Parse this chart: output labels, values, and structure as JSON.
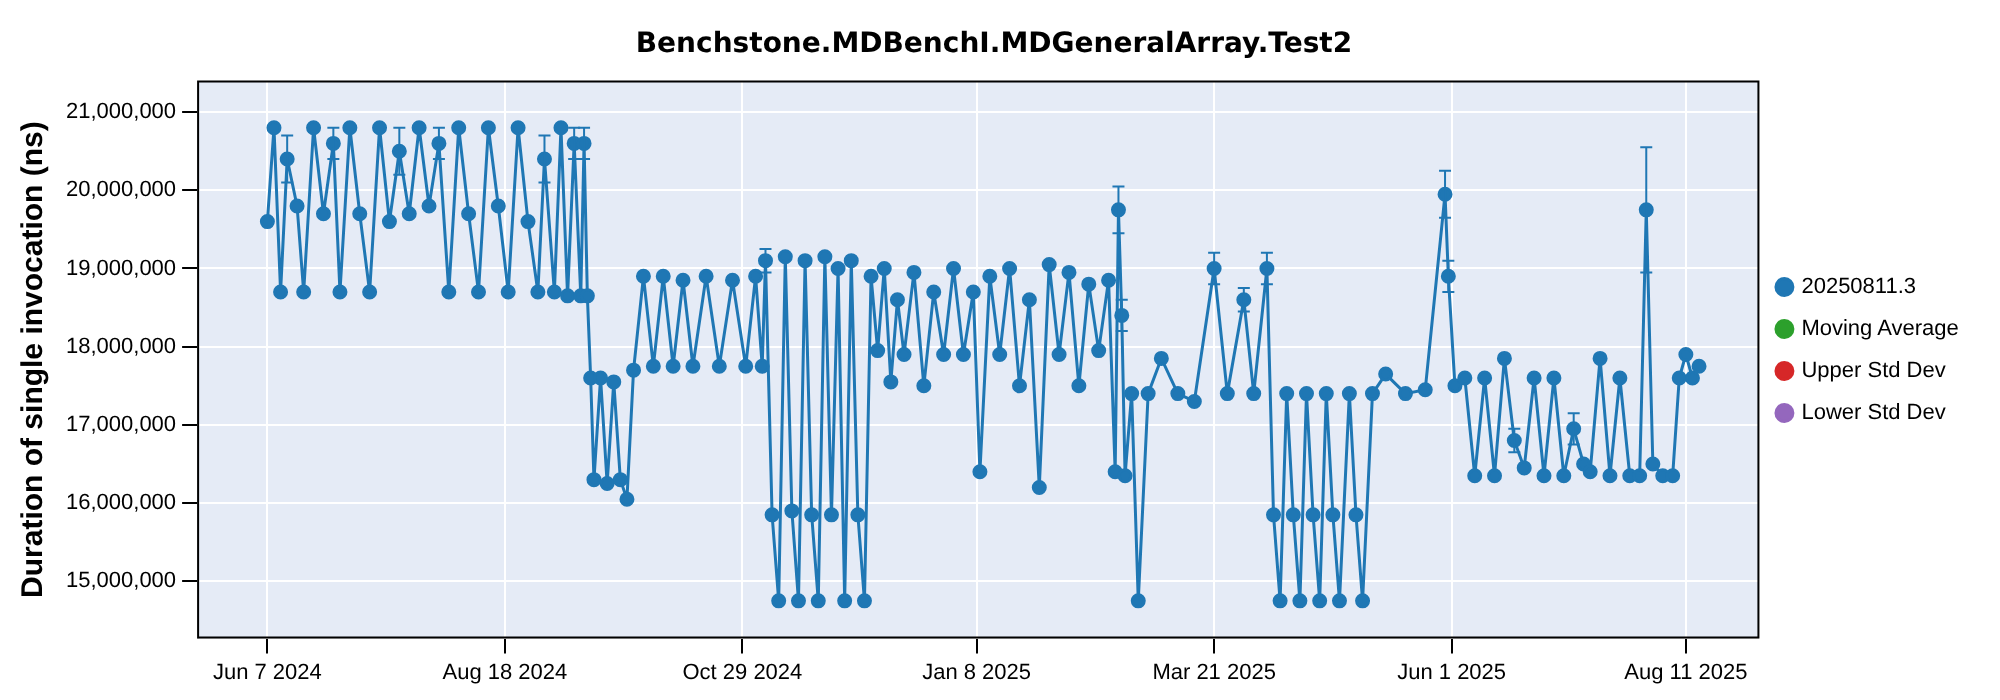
{
  "chart_data": {
    "type": "line",
    "title": "Benchstone.MDBenchI.MDGeneralArray.Test2",
    "ylabel": "Duration of single invocation (ns)",
    "marker": "circle",
    "grid": true,
    "legend": "right",
    "xlim": [
      "2024-05-17",
      "2025-09-02"
    ],
    "xticks": [
      {
        "value": "2024-06-07",
        "label": "Jun 7 2024"
      },
      {
        "value": "2024-08-18",
        "label": "Aug 18 2024"
      },
      {
        "value": "2024-10-29",
        "label": "Oct 29 2024"
      },
      {
        "value": "2025-01-08",
        "label": "Jan 8 2025"
      },
      {
        "value": "2025-03-21",
        "label": "Mar 21 2025"
      },
      {
        "value": "2025-06-01",
        "label": "Jun 1 2025"
      },
      {
        "value": "2025-08-11",
        "label": "Aug 11 2025"
      }
    ],
    "ylim": [
      14280000,
      21390000
    ],
    "yticks": [
      {
        "value": 15000000,
        "label": "15,000,000"
      },
      {
        "value": 16000000,
        "label": "16,000,000"
      },
      {
        "value": 17000000,
        "label": "17,000,000"
      },
      {
        "value": 18000000,
        "label": "18,000,000"
      },
      {
        "value": 19000000,
        "label": "19,000,000"
      },
      {
        "value": 20000000,
        "label": "20,000,000"
      },
      {
        "value": 21000000,
        "label": "21,000,000"
      }
    ],
    "series": [
      {
        "name": "20250811.3",
        "color": "#1f77b4",
        "x": [
          "2024-06-07",
          "2024-06-09",
          "2024-06-11",
          "2024-06-13",
          "2024-06-16",
          "2024-06-18",
          "2024-06-21",
          "2024-06-24",
          "2024-06-27",
          "2024-06-29",
          "2024-07-02",
          "2024-07-05",
          "2024-07-08",
          "2024-07-11",
          "2024-07-14",
          "2024-07-17",
          "2024-07-20",
          "2024-07-23",
          "2024-07-26",
          "2024-07-29",
          "2024-08-01",
          "2024-08-04",
          "2024-08-07",
          "2024-08-10",
          "2024-08-13",
          "2024-08-16",
          "2024-08-19",
          "2024-08-22",
          "2024-08-25",
          "2024-08-28",
          "2024-08-30",
          "2024-09-02",
          "2024-09-04",
          "2024-09-06",
          "2024-09-08",
          "2024-09-10",
          "2024-09-11",
          "2024-09-12",
          "2024-09-13",
          "2024-09-14",
          "2024-09-16",
          "2024-09-18",
          "2024-09-20",
          "2024-09-22",
          "2024-09-24",
          "2024-09-26",
          "2024-09-29",
          "2024-10-02",
          "2024-10-05",
          "2024-10-08",
          "2024-10-11",
          "2024-10-14",
          "2024-10-18",
          "2024-10-22",
          "2024-10-26",
          "2024-10-30",
          "2024-11-02",
          "2024-11-04",
          "2024-11-05",
          "2024-11-07",
          "2024-11-09",
          "2024-11-11",
          "2024-11-13",
          "2024-11-15",
          "2024-11-17",
          "2024-11-19",
          "2024-11-21",
          "2024-11-23",
          "2024-11-25",
          "2024-11-27",
          "2024-11-29",
          "2024-12-01",
          "2024-12-03",
          "2024-12-05",
          "2024-12-07",
          "2024-12-09",
          "2024-12-11",
          "2024-12-13",
          "2024-12-15",
          "2024-12-17",
          "2024-12-20",
          "2024-12-23",
          "2024-12-26",
          "2024-12-29",
          "2025-01-01",
          "2025-01-04",
          "2025-01-07",
          "2025-01-09",
          "2025-01-12",
          "2025-01-15",
          "2025-01-18",
          "2025-01-21",
          "2025-01-24",
          "2025-01-27",
          "2025-01-30",
          "2025-02-02",
          "2025-02-05",
          "2025-02-08",
          "2025-02-11",
          "2025-02-14",
          "2025-02-17",
          "2025-02-19",
          "2025-02-20",
          "2025-02-21",
          "2025-02-22",
          "2025-02-24",
          "2025-02-26",
          "2025-03-01",
          "2025-03-05",
          "2025-03-10",
          "2025-03-15",
          "2025-03-21",
          "2025-03-25",
          "2025-03-30",
          "2025-04-02",
          "2025-04-06",
          "2025-04-08",
          "2025-04-10",
          "2025-04-12",
          "2025-04-14",
          "2025-04-16",
          "2025-04-18",
          "2025-04-20",
          "2025-04-22",
          "2025-04-24",
          "2025-04-26",
          "2025-04-28",
          "2025-05-01",
          "2025-05-03",
          "2025-05-05",
          "2025-05-08",
          "2025-05-12",
          "2025-05-18",
          "2025-05-24",
          "2025-05-30",
          "2025-05-31",
          "2025-06-02",
          "2025-06-05",
          "2025-06-08",
          "2025-06-11",
          "2025-06-14",
          "2025-06-17",
          "2025-06-20",
          "2025-06-23",
          "2025-06-26",
          "2025-06-29",
          "2025-07-02",
          "2025-07-05",
          "2025-07-08",
          "2025-07-11",
          "2025-07-13",
          "2025-07-16",
          "2025-07-19",
          "2025-07-22",
          "2025-07-25",
          "2025-07-28",
          "2025-07-30",
          "2025-08-01",
          "2025-08-04",
          "2025-08-07",
          "2025-08-09",
          "2025-08-11",
          "2025-08-13",
          "2025-08-15"
        ],
        "values": [
          19600000,
          20800000,
          18700000,
          20400000,
          19800000,
          18700000,
          20800000,
          19700000,
          20600000,
          18700000,
          20800000,
          19700000,
          18700000,
          20800000,
          19600000,
          20500000,
          19700000,
          20800000,
          19800000,
          20600000,
          18700000,
          20800000,
          19700000,
          18700000,
          20800000,
          19800000,
          18700000,
          20800000,
          19600000,
          18700000,
          20400000,
          18700000,
          20800000,
          18650000,
          20600000,
          18650000,
          20600000,
          18650000,
          17600000,
          16300000,
          17600000,
          16250000,
          17550000,
          16300000,
          16050000,
          17700000,
          18900000,
          17750000,
          18900000,
          17750000,
          18850000,
          17750000,
          18900000,
          17750000,
          18850000,
          17750000,
          18900000,
          17750000,
          19100000,
          15850000,
          14750000,
          19150000,
          15900000,
          14750000,
          19100000,
          15850000,
          14750000,
          19150000,
          15850000,
          19000000,
          14750000,
          19100000,
          15850000,
          14750000,
          18900000,
          17950000,
          19000000,
          17550000,
          18600000,
          17900000,
          18950000,
          17500000,
          18700000,
          17900000,
          19000000,
          17900000,
          18700000,
          16400000,
          18900000,
          17900000,
          19000000,
          17500000,
          18600000,
          16200000,
          19050000,
          17900000,
          18950000,
          17500000,
          18800000,
          17950000,
          18850000,
          16400000,
          19750000,
          18400000,
          16350000,
          17400000,
          14750000,
          17400000,
          17850000,
          17400000,
          17300000,
          19000000,
          17400000,
          18600000,
          17400000,
          19000000,
          15850000,
          14750000,
          17400000,
          15850000,
          14750000,
          17400000,
          15850000,
          14750000,
          17400000,
          15850000,
          14750000,
          17400000,
          15850000,
          14750000,
          17400000,
          17650000,
          17400000,
          17450000,
          19950000,
          18900000,
          17500000,
          17600000,
          16350000,
          17600000,
          16350000,
          17850000,
          16800000,
          16450000,
          17600000,
          16350000,
          17600000,
          16350000,
          16950000,
          16500000,
          16400000,
          17850000,
          16350000,
          17600000,
          16350000,
          16350000,
          19750000,
          16500000,
          16350000,
          16350000,
          17600000,
          17900000,
          17600000,
          17750000
        ],
        "errors": [
          null,
          null,
          null,
          300000,
          null,
          null,
          null,
          null,
          200000,
          null,
          null,
          null,
          null,
          null,
          null,
          300000,
          null,
          null,
          null,
          200000,
          null,
          null,
          null,
          null,
          null,
          null,
          null,
          null,
          null,
          null,
          300000,
          null,
          null,
          null,
          200000,
          null,
          200000,
          null,
          null,
          null,
          null,
          null,
          null,
          null,
          null,
          null,
          null,
          null,
          null,
          null,
          null,
          null,
          null,
          null,
          null,
          null,
          null,
          null,
          150000,
          null,
          null,
          null,
          null,
          null,
          null,
          null,
          null,
          null,
          null,
          null,
          null,
          null,
          null,
          null,
          null,
          null,
          null,
          null,
          null,
          null,
          null,
          null,
          null,
          null,
          null,
          null,
          null,
          null,
          null,
          null,
          null,
          null,
          null,
          null,
          null,
          null,
          null,
          null,
          null,
          null,
          null,
          null,
          300000,
          200000,
          null,
          null,
          null,
          null,
          null,
          null,
          null,
          200000,
          null,
          150000,
          null,
          200000,
          null,
          null,
          null,
          null,
          null,
          null,
          null,
          null,
          null,
          null,
          null,
          null,
          null,
          null,
          null,
          null,
          null,
          null,
          300000,
          200000,
          null,
          null,
          null,
          null,
          null,
          null,
          150000,
          null,
          null,
          null,
          null,
          null,
          200000,
          null,
          null,
          null,
          null,
          null,
          null,
          null,
          800000,
          null,
          null,
          null,
          null,
          null,
          null,
          null
        ]
      },
      {
        "name": "Moving Average",
        "color": "#2ca02c"
      },
      {
        "name": "Upper Std Dev",
        "color": "#d62728"
      },
      {
        "name": "Lower Std Dev",
        "color": "#9467bd"
      }
    ]
  }
}
